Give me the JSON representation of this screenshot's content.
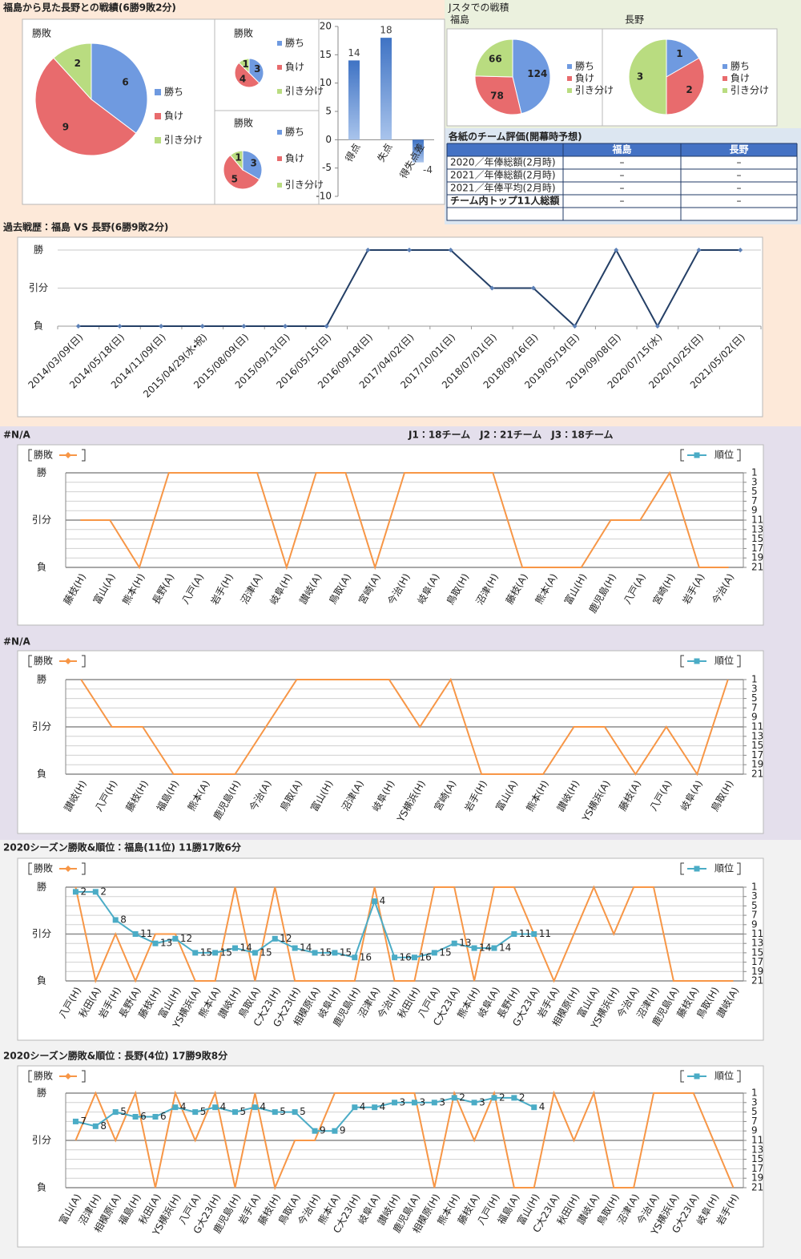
{
  "title": "福島から見た長野との戦績(6勝9敗2分)",
  "jsta_title": "Jスタでの戦積",
  "league_note": "J1：18チーム　J2：21チーム　J3：18チーム",
  "table": {
    "title": "各紙のチーム評価(開幕時予想)",
    "header": [
      "福島",
      "長野"
    ],
    "rows": [
      [
        "2020／年俸総額(2月時)",
        "–",
        "–"
      ],
      [
        "2021／年俸総額(2月時)",
        "–",
        "–"
      ],
      [
        "2021／年俸平均(2月時)",
        "–",
        "–"
      ],
      [
        "チーム内トップ11人総額",
        "–",
        "–"
      ]
    ]
  },
  "chart_data": [
    {
      "type": "pie",
      "title": "勝敗",
      "categories": [
        "勝ち",
        "負け",
        "引き分け"
      ],
      "values": [
        6,
        9,
        2
      ],
      "colors": [
        "#6f9ae0",
        "#e86b6d",
        "#b9dc80"
      ]
    },
    {
      "type": "pie",
      "title": "勝敗",
      "categories": [
        "勝ち",
        "負け",
        "引き分け"
      ],
      "values": [
        3,
        4,
        1
      ],
      "colors": [
        "#6f9ae0",
        "#e86b6d",
        "#b9dc80"
      ]
    },
    {
      "type": "pie",
      "title": "勝敗",
      "categories": [
        "勝ち",
        "負け",
        "引き分け"
      ],
      "values": [
        3,
        5,
        1
      ],
      "colors": [
        "#6f9ae0",
        "#e86b6d",
        "#b9dc80"
      ]
    },
    {
      "type": "bar",
      "categories": [
        "得点",
        "失点",
        "得失点差"
      ],
      "values": [
        14,
        18,
        -4
      ],
      "color": "#4f81bd",
      "ylim": [
        -10,
        20
      ],
      "yticks": [
        -10,
        -5,
        0,
        5,
        10,
        15,
        20
      ],
      "grid": false
    },
    {
      "type": "pie",
      "title": "福島",
      "categories": [
        "勝ち",
        "負け",
        "引き分け"
      ],
      "values": [
        124,
        78,
        66
      ],
      "colors": [
        "#6f9ae0",
        "#e86b6d",
        "#b9dc80"
      ]
    },
    {
      "type": "pie",
      "title": "長野",
      "categories": [
        "勝ち",
        "負け",
        "引き分け"
      ],
      "values": [
        1,
        2,
        3
      ],
      "colors": [
        "#6f9ae0",
        "#e86b6d",
        "#b9dc80"
      ]
    },
    {
      "type": "line",
      "title": "過去戦歴：福島 VS 長野(6勝9敗2分)",
      "categories": [
        "2014/03/09(日)",
        "2014/05/18(日)",
        "2014/11/09(日)",
        "2015/04/29(水・祝)",
        "2015/08/09(日)",
        "2015/09/13(日)",
        "2016/05/15(日)",
        "2016/09/18(日)",
        "2017/04/02(日)",
        "2017/10/01(日)",
        "2018/07/01(日)",
        "2018/09/16(日)",
        "2019/05/19(日)",
        "2019/09/08(日)",
        "2020/07/15(水)",
        "2020/10/25(日)",
        "2021/05/02(日)"
      ],
      "values": [
        0,
        0,
        0,
        0,
        0,
        0,
        0,
        2,
        2,
        2,
        1,
        1,
        0,
        2,
        0,
        2,
        2
      ],
      "color": "#243f66",
      "ylim": [
        0,
        2
      ],
      "yticks": [
        {
          "value": 2,
          "label": "勝"
        },
        {
          "value": 1,
          "label": "引分"
        },
        {
          "value": 0,
          "label": "負"
        }
      ],
      "grid": true
    },
    {
      "type": "combo",
      "title": "#N/A",
      "categories": [
        "藤枝(H)",
        "富山(A)",
        "熊本(H)",
        "長野(A)",
        "八戸(A)",
        "岩手(H)",
        "沼津(A)",
        "岐阜(H)",
        "讃岐(A)",
        "鳥取(A)",
        "宮崎(A)",
        "今治(H)",
        "岐阜(A)",
        "鳥取(H)",
        "沼津(H)",
        "藤枝(A)",
        "熊本(A)",
        "富山(H)",
        "鹿児島(H)",
        "八戸(A)",
        "宮崎(H)",
        "岩手(A)",
        "今治(A)"
      ],
      "series": [
        {
          "name": "勝敗",
          "color": "#f79646",
          "values": [
            1,
            1,
            0,
            2,
            2,
            2,
            2,
            0,
            2,
            2,
            0,
            2,
            2,
            2,
            2,
            0,
            0,
            0,
            1,
            1,
            2,
            0,
            0
          ]
        },
        {
          "name": "順位",
          "color": "#4bacc6",
          "axis": "y2",
          "values": [
            null,
            null,
            null,
            null,
            null,
            null,
            null,
            null,
            null,
            null,
            null,
            null,
            null,
            null,
            null,
            null,
            null,
            null,
            null,
            null,
            null,
            null,
            null
          ]
        }
      ],
      "ylim": [
        0,
        2
      ],
      "yticks": [
        {
          "value": 2,
          "label": "勝"
        },
        {
          "value": 1,
          "label": "引分"
        },
        {
          "value": 0,
          "label": "負"
        }
      ],
      "y2lim": [
        1,
        21
      ],
      "y2_reversed": true,
      "y2ticks": [
        1,
        3,
        5,
        7,
        9,
        11,
        13,
        15,
        17,
        19,
        21
      ],
      "grid": true
    },
    {
      "type": "combo",
      "title": "#N/A",
      "categories": [
        "讃岐(H)",
        "八戸(H)",
        "藤枝(H)",
        "福島(H)",
        "熊本(A)",
        "鹿児島(H)",
        "今治(A)",
        "鳥取(A)",
        "富山(H)",
        "沼津(A)",
        "岐阜(H)",
        "YS横浜(H)",
        "宮崎(A)",
        "岩手(H)",
        "富山(A)",
        "熊本(H)",
        "讃岐(H)",
        "YS横浜(A)",
        "藤枝(A)",
        "八戸(A)",
        "岐阜(A)",
        "鳥取(H)"
      ],
      "series": [
        {
          "name": "勝敗",
          "color": "#f79646",
          "values": [
            2,
            1,
            1,
            0,
            0,
            0,
            1,
            2,
            2,
            2,
            2,
            1,
            2,
            0,
            0,
            0,
            1,
            1,
            0,
            1,
            0,
            2
          ]
        },
        {
          "name": "順位",
          "color": "#4bacc6",
          "axis": "y2",
          "values": [
            null,
            null,
            null,
            null,
            null,
            null,
            null,
            null,
            null,
            null,
            null,
            null,
            null,
            null,
            null,
            null,
            null,
            null,
            null,
            null,
            null,
            null
          ]
        }
      ],
      "ylim": [
        0,
        2
      ],
      "yticks": [
        {
          "value": 2,
          "label": "勝"
        },
        {
          "value": 1,
          "label": "引分"
        },
        {
          "value": 0,
          "label": "負"
        }
      ],
      "y2lim": [
        1,
        21
      ],
      "y2_reversed": true,
      "y2ticks": [
        1,
        3,
        5,
        7,
        9,
        11,
        13,
        15,
        17,
        19,
        21
      ],
      "grid": true
    },
    {
      "type": "combo",
      "title": "2020シーズン勝敗&順位：福島(11位) 11勝17敗6分",
      "categories": [
        "八戸(H)",
        "秋田(A)",
        "岩手(H)",
        "長野(A)",
        "藤枝(H)",
        "富山(H)",
        "YS横浜(A)",
        "熊本(A)",
        "讃岐(H)",
        "鳥取(A)",
        "C大23(H)",
        "G大23(H)",
        "相模原(A)",
        "岐阜(H)",
        "鹿児島(H)",
        "沼津(A)",
        "今治(H)",
        "秋田(H)",
        "八戸(A)",
        "C大23(A)",
        "熊本(H)",
        "岐阜(A)",
        "長野(H)",
        "G大23(A)",
        "岩手(A)",
        "相模原(H)",
        "富山(A)",
        "YS横浜(H)",
        "今治(A)",
        "沼津(H)",
        "鹿児島(A)",
        "藤枝(A)",
        "鳥取(H)",
        "讃岐(A)"
      ],
      "series": [
        {
          "name": "勝敗",
          "color": "#f79646",
          "values": [
            2,
            0,
            1,
            0,
            1,
            1,
            0,
            0,
            2,
            0,
            2,
            0,
            0,
            0,
            0,
            2,
            0,
            0,
            2,
            2,
            0,
            2,
            2,
            1,
            0,
            1,
            2,
            1,
            2,
            2,
            0,
            0,
            0,
            0
          ]
        },
        {
          "name": "順位",
          "color": "#4bacc6",
          "axis": "y2",
          "values": [
            2,
            2,
            8,
            11,
            13,
            12,
            15,
            15,
            14,
            15,
            12,
            14,
            15,
            15,
            16,
            4,
            16,
            16,
            15,
            13,
            14,
            14,
            11,
            11,
            null,
            null,
            null,
            null,
            null,
            null,
            null,
            null,
            null,
            null
          ]
        }
      ],
      "ylim": [
        0,
        2
      ],
      "yticks": [
        {
          "value": 2,
          "label": "勝"
        },
        {
          "value": 1,
          "label": "引分"
        },
        {
          "value": 0,
          "label": "負"
        }
      ],
      "y2lim": [
        1,
        21
      ],
      "y2_reversed": true,
      "y2ticks": [
        1,
        3,
        5,
        7,
        9,
        11,
        13,
        15,
        17,
        19,
        21
      ],
      "grid": true
    },
    {
      "type": "combo",
      "title": "2020シーズン勝敗&順位：長野(4位) 17勝9敗8分",
      "categories": [
        "富山(A)",
        "沼津(H)",
        "相模原(A)",
        "福島(H)",
        "秋田(A)",
        "YS横浜(H)",
        "八戸(A)",
        "G大23(H)",
        "鹿児島(H)",
        "岩手(A)",
        "藤枝(H)",
        "鳥取(A)",
        "今治(H)",
        "熊本(A)",
        "C大23(H)",
        "岐阜(A)",
        "讃岐(H)",
        "鹿児島(A)",
        "相模原(H)",
        "熊本(H)",
        "藤枝(A)",
        "八戸(H)",
        "福島(A)",
        "富山(H)",
        "C大23(A)",
        "秋田(H)",
        "讃岐(A)",
        "鳥取(H)",
        "沼津(A)",
        "今治(A)",
        "YS横浜(A)",
        "G大23(A)",
        "岐阜(H)",
        "岩手(H)"
      ],
      "series": [
        {
          "name": "勝敗",
          "color": "#f79646",
          "values": [
            1,
            2,
            1,
            2,
            0,
            2,
            1,
            2,
            0,
            2,
            0,
            1,
            1,
            2,
            2,
            2,
            2,
            2,
            0,
            2,
            1,
            2,
            0,
            0,
            2,
            1,
            2,
            0,
            0,
            2,
            2,
            2,
            1,
            0
          ]
        },
        {
          "name": "順位",
          "color": "#4bacc6",
          "axis": "y2",
          "values": [
            7,
            8,
            5,
            6,
            6,
            4,
            5,
            4,
            5,
            4,
            5,
            5,
            9,
            9,
            4,
            4,
            3,
            3,
            3,
            2,
            3,
            2,
            2,
            4,
            null,
            null,
            null,
            null,
            null,
            null,
            null,
            null,
            null,
            null
          ]
        }
      ],
      "ylim": [
        0,
        2
      ],
      "yticks": [
        {
          "value": 2,
          "label": "勝"
        },
        {
          "value": 1,
          "label": "引分"
        },
        {
          "value": 0,
          "label": "負"
        }
      ],
      "y2lim": [
        1,
        21
      ],
      "y2_reversed": true,
      "y2ticks": [
        1,
        3,
        5,
        7,
        9,
        11,
        13,
        15,
        17,
        19,
        21
      ],
      "grid": true
    }
  ]
}
